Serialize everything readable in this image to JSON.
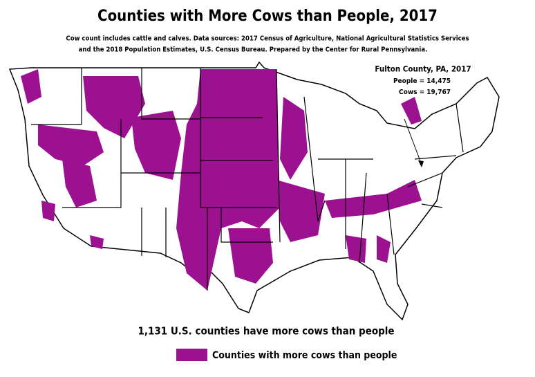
{
  "header": {
    "title": "Counties with More Cows than People, 2017",
    "subtitle": [
      "Cow count includes cattle and calves. Data sources: 2017 Census of Agriculture, National Agricultural Statistics Services",
      "and the 2018 Population Estimates, U.S. Census Bureau. Prepared by the Center for Rural Pennsylvania."
    ]
  },
  "callout": {
    "title": "Fulton County, PA, 2017",
    "lines": [
      "People = 14,475",
      "Cows = 19,767"
    ]
  },
  "summary": "1,131 U.S. counties have more cows than people",
  "legend": {
    "label": "Counties with more cows than people",
    "color": "#9c1190"
  }
}
